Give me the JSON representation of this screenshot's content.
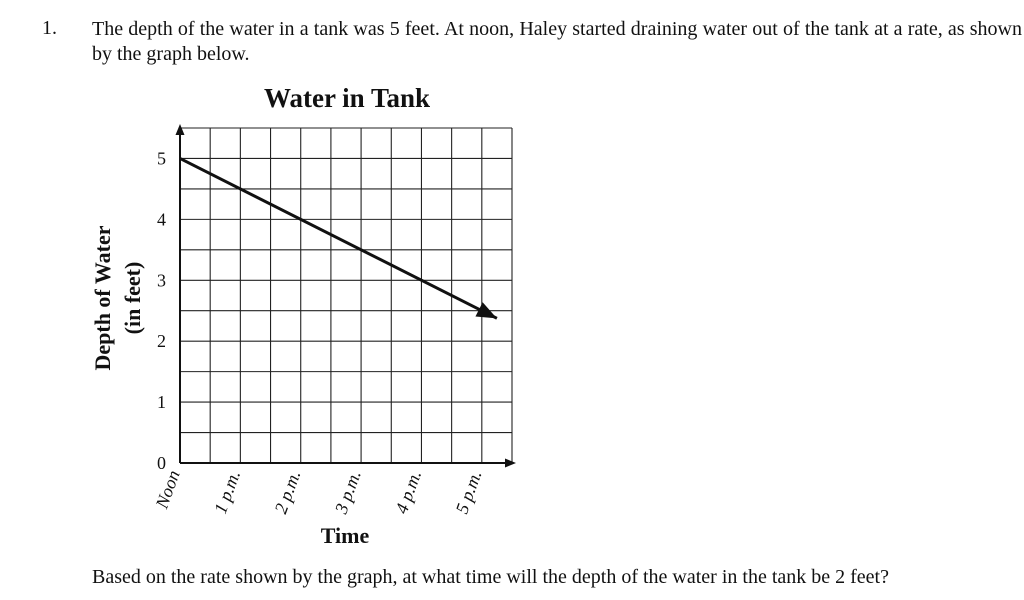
{
  "question": {
    "number": "1.",
    "text": "The depth of the water in a tank was 5 feet. At noon, Haley started draining water out of the tank at a rate, as shown by the graph below.",
    "prompt": "Based on the rate shown by the graph, at what time will the depth of the water in the tank be 2 feet?"
  },
  "chart_data": {
    "type": "line",
    "title": "Water in Tank",
    "xlabel": "Time",
    "ylabel_line1": "Depth of Water",
    "ylabel_line2": "(in feet)",
    "x_tick_labels": [
      "Noon",
      "1 p.m.",
      "2 p.m.",
      "3 p.m.",
      "4 p.m.",
      "5 p.m."
    ],
    "x_tick_values": [
      0,
      1,
      2,
      3,
      4,
      5
    ],
    "y_tick_labels": [
      "0",
      "1",
      "2",
      "3",
      "4",
      "5"
    ],
    "y_tick_values": [
      0,
      1,
      2,
      3,
      4,
      5
    ],
    "xlim": [
      0,
      5.5
    ],
    "ylim": [
      0,
      5.5
    ],
    "grid": true,
    "series": [
      {
        "x": [
          0,
          5.25
        ],
        "y": [
          5,
          2.375
        ]
      }
    ],
    "line_color": "#111111"
  }
}
